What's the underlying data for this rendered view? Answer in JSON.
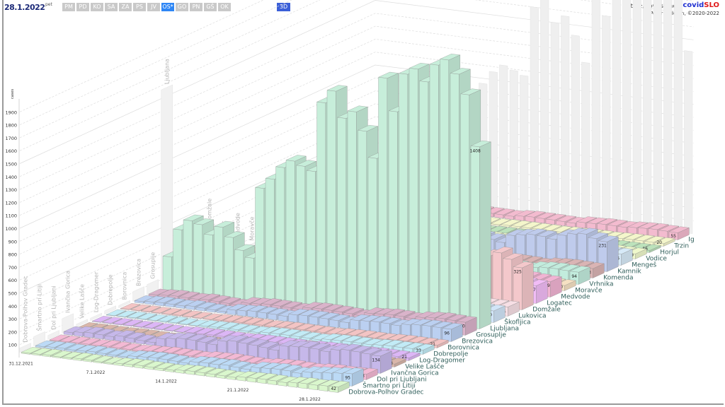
{
  "header": {
    "date": "28.1.2022",
    "weekday": "pet",
    "buttons": [
      "PM",
      "PD",
      "KO",
      "SA",
      "ZA",
      "PS",
      "JV",
      "OS*",
      "GO",
      "PN",
      "GŠ",
      "OK"
    ],
    "active_button": "OS*",
    "mode_button": "3D",
    "url": "https://covidslo.net",
    "brand_a": "covid",
    "brand_b": "SLO",
    "credit": "Peter Malovrh, ©2020-2022"
  },
  "colors": {
    "date": "#1c2a78",
    "active": "#2e86f5",
    "mode": "#3b5fd8",
    "brand_a": "#1f2fd0",
    "brand_b": "#e01a1a",
    "label": "#2f5e5a"
  },
  "chart_data": {
    "type": "bar3d",
    "ylabel": "cases",
    "yticks": [
      100,
      200,
      300,
      400,
      500,
      600,
      700,
      800,
      900,
      1000,
      1100,
      1200,
      1300,
      1400,
      1500,
      1600,
      1700,
      1800,
      1900
    ],
    "ylim": [
      0,
      2000
    ],
    "date_labels": [
      {
        "day_index": 2,
        "label": "31.12.2021"
      },
      {
        "day_index": 9,
        "label": "7.1.2022"
      },
      {
        "day_index": 16,
        "label": "14.1.2022"
      },
      {
        "day_index": 23,
        "label": "21.1.2022"
      },
      {
        "day_index": 30,
        "label": "28.1.2022"
      }
    ],
    "series": [
      {
        "name": "Dobrova-Polhov Gradec",
        "color": "#daf7cd",
        "values": [
          8,
          10,
          12,
          9,
          11,
          14,
          12,
          10,
          9,
          15,
          18,
          20,
          17,
          16,
          14,
          22,
          25,
          24,
          22,
          20,
          18,
          28,
          30,
          32,
          30,
          27,
          34,
          38,
          36,
          40,
          42
        ]
      },
      {
        "name": "Šmartno pri Litiji",
        "color": "#bcdaf6",
        "values": [
          10,
          14,
          16,
          12,
          14,
          18,
          15,
          12,
          10,
          22,
          26,
          30,
          28,
          24,
          20,
          36,
          40,
          38,
          42,
          36,
          30,
          52,
          56,
          60,
          58,
          50,
          66,
          74,
          80,
          88,
          95
        ]
      },
      {
        "name": "Dol pri Ljubljani",
        "color": "#f3b9d4",
        "values": [
          6,
          8,
          10,
          9,
          8,
          12,
          10,
          8,
          7,
          14,
          16,
          20,
          18,
          17,
          15,
          24,
          26,
          28,
          25,
          22,
          20,
          30,
          34,
          36,
          33,
          30,
          38,
          42,
          40,
          41,
          43
        ]
      },
      {
        "name": "Ivančna Gorica",
        "color": "#c6b8ea",
        "values": [
          20,
          30,
          36,
          32,
          28,
          40,
          34,
          26,
          22,
          60,
          70,
          80,
          78,
          72,
          64,
          100,
          110,
          104,
          98,
          90,
          80,
          120,
          126,
          132,
          128,
          118,
          140,
          150,
          146,
          140,
          134
        ]
      },
      {
        "name": "Velike Lašče",
        "color": "#d9b6aa",
        "values": [
          3,
          4,
          5,
          4,
          4,
          6,
          5,
          4,
          3,
          8,
          10,
          12,
          11,
          10,
          9,
          14,
          16,
          15,
          14,
          12,
          11,
          18,
          20,
          22,
          21,
          19,
          24,
          26,
          25,
          24,
          23
        ]
      },
      {
        "name": "Log-Dragomer",
        "color": "#dcb6f6",
        "values": [
          3,
          4,
          5,
          5,
          4,
          6,
          5,
          4,
          3,
          8,
          9,
          11,
          10,
          9,
          8,
          13,
          15,
          14,
          13,
          12,
          10,
          17,
          19,
          20,
          19,
          17,
          22,
          24,
          23,
          22,
          21
        ]
      },
      {
        "name": "Dobrepolje",
        "color": "#c2ebf6",
        "values": [
          4,
          5,
          6,
          6,
          5,
          8,
          7,
          5,
          4,
          10,
          12,
          14,
          13,
          12,
          11,
          18,
          20,
          19,
          18,
          16,
          14,
          24,
          26,
          28,
          27,
          25,
          30,
          34,
          33,
          34,
          33
        ]
      },
      {
        "name": "Borovnica",
        "color": "#f3c4c4",
        "values": [
          3,
          4,
          5,
          4,
          4,
          6,
          5,
          4,
          3,
          7,
          9,
          10,
          10,
          9,
          8,
          12,
          14,
          13,
          12,
          11,
          10,
          16,
          18,
          19,
          18,
          17,
          21,
          23,
          22,
          22,
          21
        ]
      },
      {
        "name": "Brezovica",
        "color": "#bbd0f1",
        "values": [
          14,
          20,
          24,
          22,
          20,
          26,
          22,
          18,
          15,
          36,
          40,
          46,
          44,
          42,
          38,
          58,
          62,
          60,
          58,
          54,
          48,
          74,
          78,
          82,
          80,
          74,
          90,
          98,
          100,
          98,
          96
        ]
      },
      {
        "name": "Grosuplje",
        "color": "#dab3ca",
        "values": [
          16,
          22,
          26,
          24,
          22,
          28,
          24,
          20,
          16,
          40,
          44,
          50,
          48,
          46,
          42,
          62,
          66,
          64,
          62,
          58,
          52,
          78,
          82,
          88,
          86,
          80,
          96,
          104,
          108,
          104,
          100
        ]
      },
      {
        "name": "Ljubljana",
        "color": "#c7eeda",
        "values": [
          260,
          480,
          560,
          540,
          470,
          540,
          470,
          380,
          330,
          880,
          960,
          1060,
          1120,
          1090,
          1060,
          1600,
          1700,
          1500,
          1560,
          1420,
          1220,
          1850,
          1600,
          1900,
          1950,
          1860,
          2000,
          2050,
          1950,
          1800,
          1408
        ]
      },
      {
        "name": "Škofljica",
        "color": "#d1e5f8",
        "values": [
          14,
          18,
          22,
          20,
          18,
          24,
          21,
          17,
          14,
          34,
          38,
          44,
          42,
          40,
          36,
          54,
          58,
          56,
          54,
          50,
          46,
          70,
          74,
          78,
          76,
          72,
          86,
          92,
          94,
          92,
          90
        ]
      },
      {
        "name": "Lukovica",
        "color": "#f7dfe5",
        "values": [
          10,
          14,
          16,
          15,
          13,
          18,
          16,
          13,
          11,
          26,
          28,
          32,
          31,
          30,
          27,
          40,
          44,
          42,
          40,
          38,
          34,
          52,
          56,
          58,
          57,
          54,
          64,
          70,
          72,
          72,
          71
        ]
      },
      {
        "name": "Domžale",
        "color": "#f4c8cb",
        "values": [
          50,
          70,
          84,
          80,
          72,
          90,
          80,
          64,
          54,
          130,
          144,
          160,
          156,
          150,
          138,
          210,
          230,
          220,
          214,
          200,
          180,
          280,
          300,
          320,
          316,
          296,
          360,
          390,
          420,
          380,
          325
        ]
      },
      {
        "name": "Logatec",
        "color": "#f1bcf6",
        "values": [
          20,
          28,
          34,
          32,
          28,
          36,
          32,
          26,
          22,
          52,
          58,
          66,
          64,
          60,
          56,
          86,
          94,
          90,
          88,
          82,
          74,
          110,
          118,
          124,
          122,
          116,
          136,
          146,
          150,
          144,
          137
        ]
      },
      {
        "name": "Medvode",
        "color": "#f1b4d3",
        "values": [
          18,
          24,
          30,
          28,
          24,
          32,
          28,
          22,
          18,
          46,
          50,
          58,
          56,
          52,
          48,
          74,
          80,
          78,
          76,
          70,
          64,
          96,
          102,
          108,
          106,
          100,
          118,
          128,
          130,
          124,
          119
        ]
      },
      {
        "name": "Moravče",
        "color": "#f6e1c3",
        "values": [
          6,
          8,
          10,
          9,
          8,
          12,
          10,
          8,
          7,
          16,
          18,
          20,
          19,
          18,
          16,
          24,
          26,
          25,
          24,
          22,
          20,
          30,
          32,
          34,
          33,
          32,
          38,
          42,
          43,
          41,
          40
        ]
      },
      {
        "name": "Vrhnika",
        "color": "#c2ecdd",
        "values": [
          14,
          20,
          24,
          22,
          20,
          26,
          23,
          18,
          15,
          36,
          40,
          46,
          44,
          42,
          38,
          58,
          62,
          60,
          58,
          54,
          50,
          72,
          76,
          82,
          80,
          76,
          90,
          98,
          100,
          96,
          94
        ]
      },
      {
        "name": "Komenda",
        "color": "#dab4b4",
        "values": [
          10,
          14,
          18,
          16,
          14,
          20,
          17,
          14,
          11,
          28,
          30,
          36,
          34,
          32,
          30,
          44,
          48,
          46,
          44,
          42,
          38,
          56,
          60,
          64,
          62,
          58,
          70,
          76,
          78,
          75,
          73
        ]
      },
      {
        "name": "Kamnik",
        "color": "#bfcbec",
        "values": [
          36,
          50,
          60,
          56,
          50,
          64,
          56,
          46,
          38,
          90,
          100,
          114,
          110,
          104,
          96,
          146,
          160,
          154,
          150,
          140,
          126,
          190,
          204,
          216,
          212,
          200,
          240,
          260,
          270,
          246,
          231
        ]
      },
      {
        "name": "Mengeš",
        "color": "#d7eaf8",
        "values": [
          12,
          18,
          22,
          20,
          18,
          24,
          21,
          17,
          14,
          34,
          38,
          42,
          40,
          38,
          36,
          54,
          58,
          56,
          54,
          50,
          46,
          66,
          70,
          74,
          72,
          70,
          82,
          88,
          90,
          88,
          86
        ]
      },
      {
        "name": "Vodice",
        "color": "#eff8cb",
        "values": [
          6,
          8,
          10,
          9,
          8,
          11,
          10,
          8,
          6,
          15,
          17,
          19,
          18,
          17,
          16,
          24,
          26,
          25,
          24,
          22,
          20,
          30,
          32,
          34,
          33,
          32,
          37,
          40,
          41,
          40,
          39
        ]
      },
      {
        "name": "Horjul",
        "color": "#bce2bb",
        "values": [
          2,
          3,
          4,
          4,
          3,
          5,
          4,
          3,
          2,
          6,
          7,
          8,
          8,
          7,
          7,
          10,
          11,
          11,
          10,
          10,
          9,
          13,
          14,
          15,
          14,
          14,
          16,
          17,
          17,
          16,
          16
        ]
      },
      {
        "name": "Trzin",
        "color": "#f4f6cb",
        "values": [
          3,
          4,
          5,
          5,
          4,
          6,
          5,
          4,
          3,
          8,
          9,
          10,
          10,
          9,
          9,
          12,
          13,
          13,
          12,
          12,
          11,
          15,
          16,
          17,
          17,
          16,
          19,
          21,
          21,
          20,
          20
        ]
      },
      {
        "name": "Ig",
        "color": "#f3bbcf",
        "values": [
          8,
          12,
          14,
          13,
          11,
          16,
          14,
          11,
          9,
          22,
          24,
          28,
          27,
          26,
          24,
          34,
          38,
          36,
          35,
          33,
          30,
          44,
          46,
          50,
          49,
          47,
          54,
          58,
          60,
          57,
          55
        ]
      }
    ]
  }
}
